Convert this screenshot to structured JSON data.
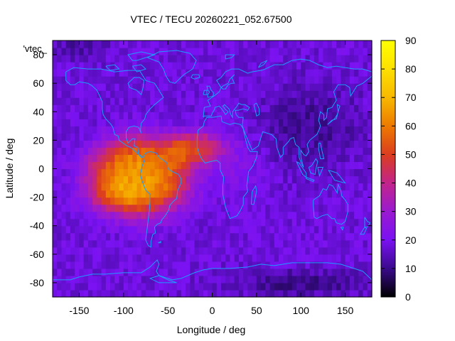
{
  "chart_data": {
    "type": "heatmap",
    "title": "VTEC / TECU 20260221_052.67500",
    "xlabel": "Longitude / deg",
    "ylabel": "Latitude / deg",
    "key_label": "'vtec_",
    "xlim": [
      -180,
      180
    ],
    "ylim": [
      -90,
      90
    ],
    "xticks": [
      -150,
      -100,
      -50,
      0,
      50,
      100,
      150
    ],
    "yticks": [
      -80,
      -60,
      -40,
      -20,
      0,
      20,
      40,
      60,
      80
    ],
    "colorbar": {
      "range": [
        0,
        90
      ],
      "ticks": [
        0,
        10,
        20,
        30,
        40,
        50,
        60,
        70,
        80,
        90
      ],
      "palette": [
        "#000000",
        "#3a0a8c",
        "#7a12f2",
        "#9a1ad0",
        "#c2248a",
        "#db3d1f",
        "#ed7a00",
        "#f7b800",
        "#fde000",
        "#ffff00"
      ]
    },
    "resolution_deg": 5,
    "description_values": {
      "background_tecu": 18,
      "peak_tecu": 66,
      "peak_lon": -95,
      "peak_lat": -10
    }
  }
}
